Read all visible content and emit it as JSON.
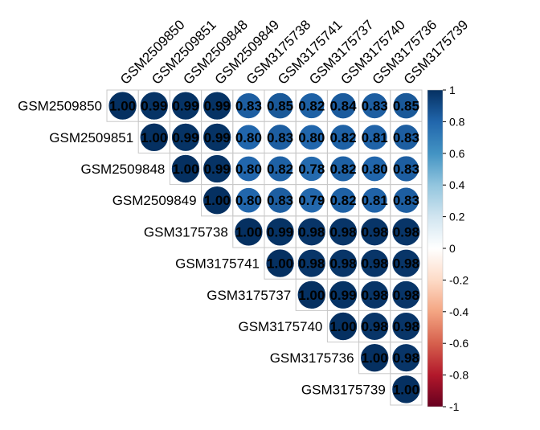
{
  "chart_data": {
    "type": "heatmap",
    "title": "",
    "variables": [
      "GSM2509850",
      "GSM2509851",
      "GSM2509848",
      "GSM2509849",
      "GSM3175738",
      "GSM3175741",
      "GSM3175737",
      "GSM3175740",
      "GSM3175736",
      "GSM3175739"
    ],
    "matrix_upper": [
      [
        "1.00",
        "0.99",
        "0.99",
        "0.99",
        "0.83",
        "0.85",
        "0.82",
        "0.84",
        "0.83",
        "0.85"
      ],
      [
        "1.00",
        "0.99",
        "0.99",
        "0.80",
        "0.83",
        "0.80",
        "0.82",
        "0.81",
        "0.83"
      ],
      [
        "1.00",
        "0.99",
        "0.80",
        "0.82",
        "0.78",
        "0.82",
        "0.80",
        "0.83"
      ],
      [
        "1.00",
        "0.80",
        "0.83",
        "0.79",
        "0.82",
        "0.81",
        "0.83"
      ],
      [
        "1.00",
        "0.99",
        "0.98",
        "0.98",
        "0.98",
        "0.98"
      ],
      [
        "1.00",
        "0.98",
        "0.98",
        "0.98",
        "0.98"
      ],
      [
        "1.00",
        "0.99",
        "0.98",
        "0.98"
      ],
      [
        "1.00",
        "0.98",
        "0.98"
      ],
      [
        "1.00",
        "0.98"
      ],
      [
        "1.00"
      ]
    ],
    "colorbar": {
      "ticks": [
        "1",
        "0.8",
        "0.6",
        "0.4",
        "0.2",
        "0",
        "-0.2",
        "-0.4",
        "-0.6",
        "-0.8",
        "-1"
      ],
      "range": [
        -1,
        1
      ]
    },
    "colors": {
      "scale": [
        "#67001F",
        "#B2182B",
        "#D6604D",
        "#F4A582",
        "#FDDBC7",
        "#FFFFFF",
        "#D1E5F0",
        "#92C5DE",
        "#4393C3",
        "#2166AC",
        "#053061"
      ],
      "grid": "#c8c8c8",
      "label": "#000000"
    }
  }
}
